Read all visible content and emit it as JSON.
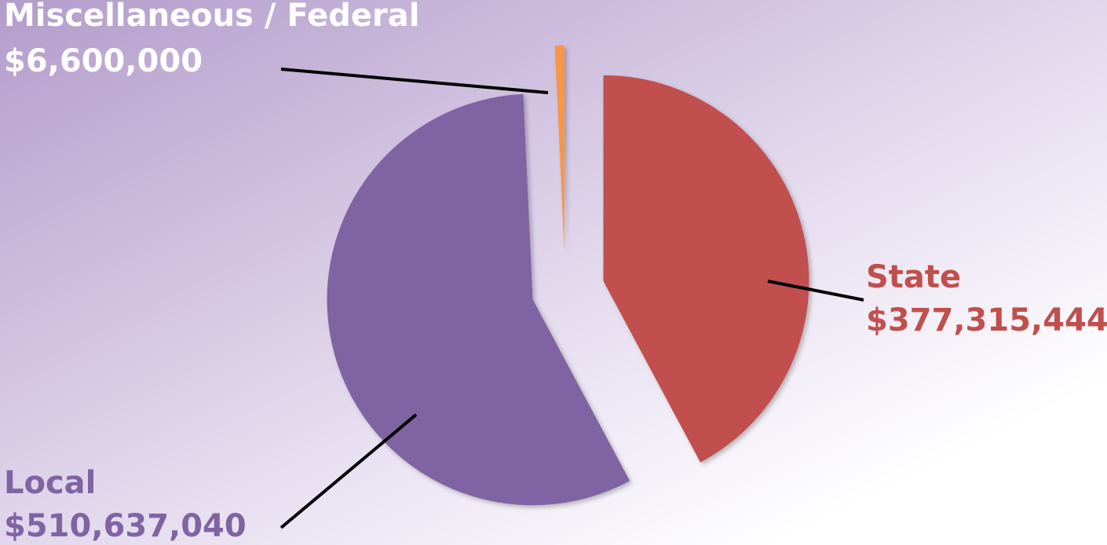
{
  "chart_data": {
    "type": "pie",
    "categories": [
      "State",
      "Local",
      "Miscellaneous / Federal"
    ],
    "values": [
      377315444,
      510637040,
      6600000
    ],
    "value_labels": [
      "$377,315,444",
      "$510,637,040",
      "$6,600,000"
    ],
    "colors": [
      "#c0504d",
      "#8064a2",
      "#f79646"
    ]
  }
}
